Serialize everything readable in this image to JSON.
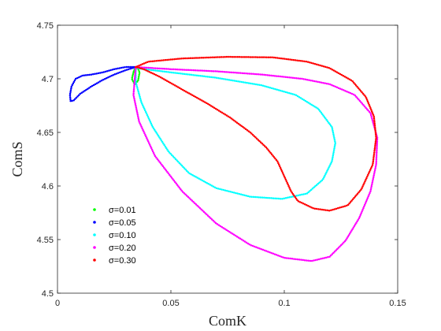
{
  "chart_data": {
    "type": "scatter",
    "xlabel": "ComK",
    "ylabel": "ComS",
    "xlim": [
      0,
      0.15
    ],
    "ylim": [
      4.5,
      4.75
    ],
    "xticks": [
      0,
      0.05,
      0.1,
      0.15
    ],
    "xtick_labels": [
      "0",
      "0.05",
      "0.1",
      "0.15"
    ],
    "yticks": [
      4.5,
      4.55,
      4.6,
      4.65,
      4.7,
      4.75
    ],
    "ytick_labels": [
      "4.5",
      "4.55",
      "4.6",
      "4.65",
      "4.7",
      "4.75"
    ],
    "grid": false,
    "legend_position": "lower-left",
    "series": [
      {
        "name": "σ=0.01",
        "color": "#00ff00",
        "points": [
          [
            0.0335,
            4.706
          ],
          [
            0.0328,
            4.7
          ],
          [
            0.034,
            4.695
          ],
          [
            0.0355,
            4.698
          ],
          [
            0.0362,
            4.706
          ],
          [
            0.0354,
            4.71
          ],
          [
            0.034,
            4.709
          ],
          [
            0.0335,
            4.706
          ]
        ]
      },
      {
        "name": "σ=0.05",
        "color": "#0000ff",
        "points": [
          [
            0.0345,
            4.711
          ],
          [
            0.03,
            4.711
          ],
          [
            0.025,
            4.709
          ],
          [
            0.02,
            4.706
          ],
          [
            0.015,
            4.704
          ],
          [
            0.011,
            4.703
          ],
          [
            0.008,
            4.7
          ],
          [
            0.0062,
            4.693
          ],
          [
            0.0055,
            4.685
          ],
          [
            0.0058,
            4.679
          ],
          [
            0.0072,
            4.68
          ],
          [
            0.01,
            4.686
          ],
          [
            0.015,
            4.693
          ],
          [
            0.02,
            4.699
          ],
          [
            0.025,
            4.704
          ],
          [
            0.03,
            4.708
          ],
          [
            0.0345,
            4.711
          ]
        ]
      },
      {
        "name": "σ=0.10",
        "color": "#00ffff",
        "points": [
          [
            0.0345,
            4.71
          ],
          [
            0.05,
            4.706
          ],
          [
            0.07,
            4.701
          ],
          [
            0.09,
            4.694
          ],
          [
            0.105,
            4.685
          ],
          [
            0.115,
            4.672
          ],
          [
            0.121,
            4.655
          ],
          [
            0.1225,
            4.64
          ],
          [
            0.121,
            4.623
          ],
          [
            0.117,
            4.606
          ],
          [
            0.11,
            4.593
          ],
          [
            0.099,
            4.588
          ],
          [
            0.085,
            4.59
          ],
          [
            0.07,
            4.598
          ],
          [
            0.058,
            4.612
          ],
          [
            0.049,
            4.632
          ],
          [
            0.042,
            4.655
          ],
          [
            0.037,
            4.678
          ],
          [
            0.0345,
            4.697
          ],
          [
            0.0345,
            4.71
          ]
        ]
      },
      {
        "name": "σ=0.20",
        "color": "#ff00ff",
        "points": [
          [
            0.0345,
            4.711
          ],
          [
            0.05,
            4.709
          ],
          [
            0.07,
            4.707
          ],
          [
            0.09,
            4.704
          ],
          [
            0.108,
            4.7
          ],
          [
            0.12,
            4.695
          ],
          [
            0.131,
            4.685
          ],
          [
            0.138,
            4.668
          ],
          [
            0.141,
            4.645
          ],
          [
            0.1405,
            4.62
          ],
          [
            0.138,
            4.595
          ],
          [
            0.133,
            4.57
          ],
          [
            0.127,
            4.549
          ],
          [
            0.12,
            4.534
          ],
          [
            0.112,
            4.53
          ],
          [
            0.1,
            4.533
          ],
          [
            0.085,
            4.545
          ],
          [
            0.07,
            4.565
          ],
          [
            0.055,
            4.595
          ],
          [
            0.043,
            4.628
          ],
          [
            0.036,
            4.66
          ],
          [
            0.0335,
            4.685
          ],
          [
            0.0345,
            4.711
          ]
        ]
      },
      {
        "name": "σ=0.30",
        "color": "#ff0000",
        "points": [
          [
            0.0345,
            4.711
          ],
          [
            0.04,
            4.716
          ],
          [
            0.055,
            4.719
          ],
          [
            0.075,
            4.7205
          ],
          [
            0.095,
            4.72
          ],
          [
            0.11,
            4.716
          ],
          [
            0.12,
            4.71
          ],
          [
            0.13,
            4.698
          ],
          [
            0.136,
            4.683
          ],
          [
            0.1395,
            4.665
          ],
          [
            0.1405,
            4.645
          ],
          [
            0.139,
            4.62
          ],
          [
            0.134,
            4.597
          ],
          [
            0.128,
            4.582
          ],
          [
            0.12,
            4.577
          ],
          [
            0.113,
            4.579
          ],
          [
            0.106,
            4.586
          ],
          [
            0.103,
            4.595
          ],
          [
            0.1,
            4.609
          ],
          [
            0.097,
            4.623
          ],
          [
            0.092,
            4.636
          ],
          [
            0.085,
            4.65
          ],
          [
            0.076,
            4.664
          ],
          [
            0.066,
            4.677
          ],
          [
            0.055,
            4.69
          ],
          [
            0.045,
            4.702
          ],
          [
            0.038,
            4.709
          ],
          [
            0.0345,
            4.711
          ]
        ]
      }
    ]
  }
}
